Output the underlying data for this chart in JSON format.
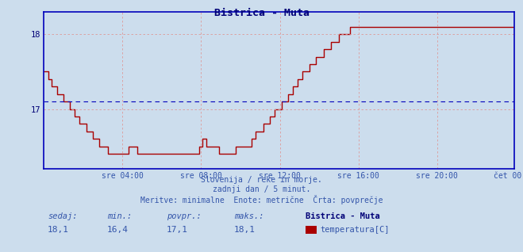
{
  "title": "Bistrica - Muta",
  "bg_color": "#ccdded",
  "plot_bg_color": "#ccdded",
  "line_color": "#aa0000",
  "avg_line_color": "#0000bb",
  "axis_color": "#0000bb",
  "grid_color": "#dd9999",
  "ylabel_color": "#000077",
  "title_color": "#000077",
  "text_color": "#3355aa",
  "ylim": [
    16.2,
    18.3
  ],
  "yticks": [
    17.0,
    18.0
  ],
  "avg_value": 17.1,
  "min_value": 16.4,
  "max_value": 18.1,
  "current_value": 18.1,
  "x_tick_labels": [
    "sre 04:00",
    "sre 08:00",
    "sre 12:00",
    "sre 16:00",
    "sre 20:00",
    "čet 00:00"
  ],
  "subtitle1": "Slovenija / reke in morje.",
  "subtitle2": "zadnji dan / 5 minut.",
  "subtitle3": "Meritve: minimalne  Enote: metrične  Črta: povprečje",
  "label_sedaj": "sedaj:",
  "label_min": "min.:",
  "label_povpr": "povpr.:",
  "label_maks": "maks.:",
  "legend_title": "Bistrica - Muta",
  "legend_label": "temperatura[C]",
  "n_points": 288,
  "temperature_profile": [
    17.5,
    17.5,
    17.5,
    17.4,
    17.4,
    17.3,
    17.3,
    17.3,
    17.2,
    17.2,
    17.2,
    17.2,
    17.1,
    17.1,
    17.1,
    17.1,
    17.0,
    17.0,
    17.0,
    16.9,
    16.9,
    16.9,
    16.8,
    16.8,
    16.8,
    16.8,
    16.7,
    16.7,
    16.7,
    16.7,
    16.6,
    16.6,
    16.6,
    16.6,
    16.5,
    16.5,
    16.5,
    16.5,
    16.5,
    16.4,
    16.4,
    16.4,
    16.4,
    16.4,
    16.4,
    16.4,
    16.4,
    16.4,
    16.4,
    16.4,
    16.4,
    16.4,
    16.5,
    16.5,
    16.5,
    16.5,
    16.5,
    16.4,
    16.4,
    16.4,
    16.4,
    16.4,
    16.4,
    16.4,
    16.4,
    16.4,
    16.4,
    16.4,
    16.4,
    16.4,
    16.4,
    16.4,
    16.4,
    16.4,
    16.4,
    16.4,
    16.4,
    16.4,
    16.4,
    16.4,
    16.4,
    16.4,
    16.4,
    16.4,
    16.4,
    16.4,
    16.4,
    16.4,
    16.4,
    16.4,
    16.4,
    16.4,
    16.4,
    16.4,
    16.4,
    16.5,
    16.5,
    16.6,
    16.6,
    16.5,
    16.5,
    16.5,
    16.5,
    16.5,
    16.5,
    16.5,
    16.5,
    16.4,
    16.4,
    16.4,
    16.4,
    16.4,
    16.4,
    16.4,
    16.4,
    16.4,
    16.4,
    16.5,
    16.5,
    16.5,
    16.5,
    16.5,
    16.5,
    16.5,
    16.5,
    16.5,
    16.5,
    16.6,
    16.6,
    16.7,
    16.7,
    16.7,
    16.7,
    16.7,
    16.8,
    16.8,
    16.8,
    16.8,
    16.9,
    16.9,
    16.9,
    17.0,
    17.0,
    17.0,
    17.0,
    17.1,
    17.1,
    17.1,
    17.1,
    17.2,
    17.2,
    17.2,
    17.3,
    17.3,
    17.3,
    17.4,
    17.4,
    17.4,
    17.5,
    17.5,
    17.5,
    17.5,
    17.6,
    17.6,
    17.6,
    17.6,
    17.7,
    17.7,
    17.7,
    17.7,
    17.7,
    17.8,
    17.8,
    17.8,
    17.8,
    17.9,
    17.9,
    17.9,
    17.9,
    17.9,
    18.0,
    18.0,
    18.0,
    18.0,
    18.0,
    18.0,
    18.0,
    18.1,
    18.1,
    18.1,
    18.1,
    18.1,
    18.1,
    18.1,
    18.1,
    18.1,
    18.1,
    18.1,
    18.1,
    18.1,
    18.1,
    18.1,
    18.1,
    18.1,
    18.1,
    18.1,
    18.1,
    18.1,
    18.1,
    18.1,
    18.1,
    18.1,
    18.1,
    18.1,
    18.1,
    18.1,
    18.1,
    18.1,
    18.1,
    18.1,
    18.1,
    18.1,
    18.1,
    18.1,
    18.1,
    18.1,
    18.1,
    18.1,
    18.1,
    18.1,
    18.1,
    18.1,
    18.1,
    18.1,
    18.1,
    18.1,
    18.1,
    18.1,
    18.1,
    18.1,
    18.1,
    18.1,
    18.1,
    18.1,
    18.1,
    18.1,
    18.1,
    18.1,
    18.1,
    18.1,
    18.1,
    18.1,
    18.1,
    18.1,
    18.1,
    18.1,
    18.1,
    18.1,
    18.1,
    18.1,
    18.1,
    18.1,
    18.1,
    18.1,
    18.1,
    18.1,
    18.1,
    18.1,
    18.1,
    18.1,
    18.1,
    18.1,
    18.1,
    18.1,
    18.1,
    18.1,
    18.1,
    18.1,
    18.1,
    18.1,
    18.1,
    18.1,
    18.1,
    18.1,
    18.1,
    18.1,
    18.1,
    18.1
  ]
}
